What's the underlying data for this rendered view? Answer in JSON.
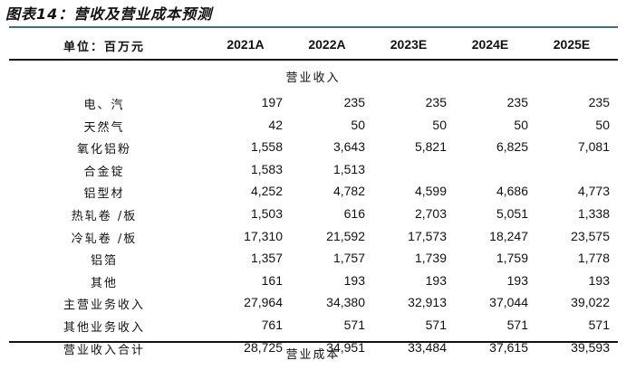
{
  "title": "图表14：营收及营业成本预测",
  "header": {
    "unit": "单位：百万元",
    "years": [
      "2021A",
      "2022A",
      "2023E",
      "2024E",
      "2025E"
    ]
  },
  "sections": {
    "revenue": "营业收入",
    "cost": "营业成本"
  },
  "rows": [
    {
      "label": "电、汽",
      "values": [
        "197",
        "235",
        "235",
        "235",
        "235"
      ]
    },
    {
      "label": "天然气",
      "values": [
        "42",
        "50",
        "50",
        "50",
        "50"
      ]
    },
    {
      "label": "氧化铝粉",
      "values": [
        "1,558",
        "3,643",
        "5,821",
        "6,825",
        "7,081"
      ]
    },
    {
      "label": "合金锭",
      "values": [
        "1,583",
        "1,513",
        "",
        "",
        ""
      ]
    },
    {
      "label": "铝型材",
      "values": [
        "4,252",
        "4,782",
        "4,599",
        "4,686",
        "4,773"
      ]
    },
    {
      "label": "热轧卷 /板",
      "values": [
        "1,503",
        "616",
        "2,703",
        "5,051",
        "1,338"
      ]
    },
    {
      "label": "冷轧卷 /板",
      "values": [
        "17,310",
        "21,592",
        "17,573",
        "18,247",
        "23,575"
      ]
    },
    {
      "label": "铝箔",
      "values": [
        "1,357",
        "1,757",
        "1,739",
        "1,759",
        "1,778"
      ]
    },
    {
      "label": "其他",
      "values": [
        "161",
        "193",
        "193",
        "193",
        "193"
      ]
    },
    {
      "label": "主营业务收入",
      "values": [
        "27,964",
        "34,380",
        "32,913",
        "37,044",
        "39,022"
      ]
    },
    {
      "label": "其他业务收入",
      "values": [
        "761",
        "571",
        "571",
        "571",
        "571"
      ]
    },
    {
      "label": "营业收入合计",
      "values": [
        "28,725",
        "34,951",
        "33,484",
        "37,615",
        "39,593"
      ]
    }
  ],
  "colors": {
    "top_rule": "#3e6f86",
    "rule": "#111111"
  }
}
